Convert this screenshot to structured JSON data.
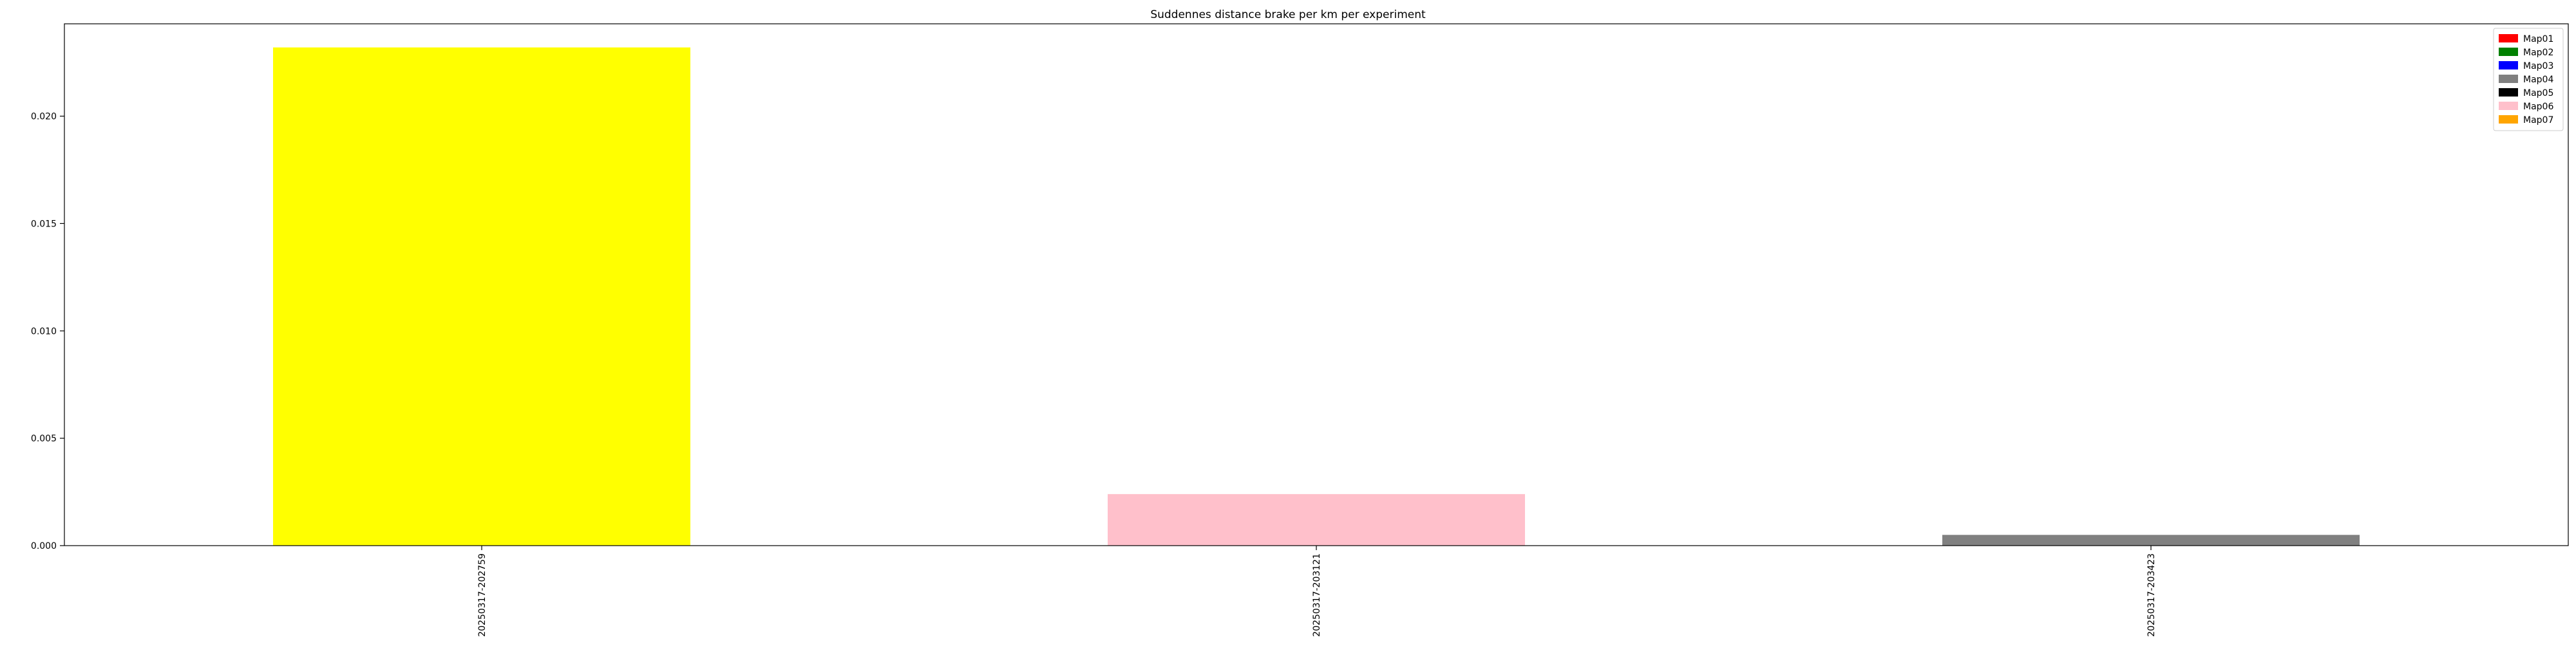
{
  "chart_data": {
    "type": "bar",
    "title": "Suddennes distance brake per km per experiment",
    "xlabel": "",
    "ylabel": "",
    "categories": [
      "20250317-202759",
      "20250317-203121",
      "20250317-203423"
    ],
    "values": [
      0.0232,
      0.0024,
      0.0005
    ],
    "bar_colors": [
      "#ffff00",
      "#ffc0cb",
      "#808080"
    ],
    "ylim": [
      0,
      0.0243
    ],
    "yticks": [
      0.0,
      0.005,
      0.01,
      0.015,
      0.02
    ],
    "ytick_labels": [
      "0.000",
      "0.005",
      "0.010",
      "0.015",
      "0.020"
    ],
    "grid": false,
    "legend": {
      "placement": "top-right",
      "entries": [
        {
          "label": "Map01",
          "color": "#ff0000"
        },
        {
          "label": "Map02",
          "color": "#008000"
        },
        {
          "label": "Map03",
          "color": "#0000ff"
        },
        {
          "label": "Map04",
          "color": "#808080"
        },
        {
          "label": "Map05",
          "color": "#000000"
        },
        {
          "label": "Map06",
          "color": "#ffc0cb"
        },
        {
          "label": "Map07",
          "color": "#ffa500"
        }
      ]
    }
  }
}
